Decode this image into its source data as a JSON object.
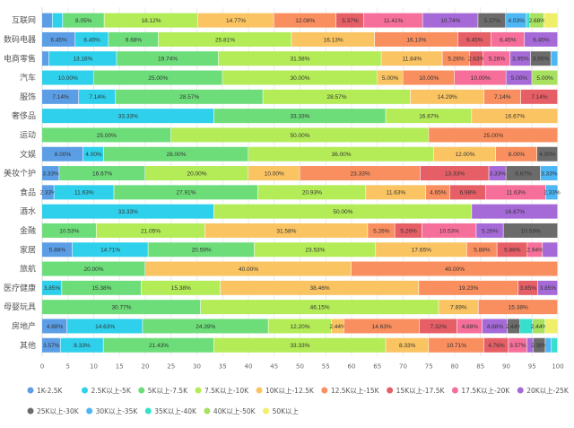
{
  "chart_data": {
    "type": "bar",
    "orientation": "horizontal",
    "stacked": true,
    "title": "",
    "xlabel": "",
    "ylabel": "",
    "xlim": [
      0,
      100
    ],
    "xticks": [
      0,
      5,
      10,
      15,
      20,
      25,
      30,
      35,
      40,
      45,
      50,
      55,
      60,
      65,
      70,
      75,
      80,
      85,
      90,
      95,
      100
    ],
    "grid": true,
    "legend_position": "bottom",
    "value_suffix": "%",
    "categories": [
      "互联网",
      "数码电器",
      "电商零售",
      "汽车",
      "服饰",
      "奢侈品",
      "运动",
      "文娱",
      "美妆个护",
      "食品",
      "酒水",
      "金融",
      "家居",
      "旅航",
      "医疗健康",
      "母婴玩具",
      "房地产",
      "其他"
    ],
    "series": [
      {
        "name": "1K-2.5K",
        "color": "#5b9ee6",
        "values": [
          2.01,
          6.45,
          1.32,
          0,
          7.14,
          0,
          0,
          8,
          3.33,
          2.33,
          0,
          0,
          5.88,
          0,
          0,
          0,
          4.88,
          3.57
        ]
      },
      {
        "name": "2.5K以上-5K",
        "color": "#2fd0ec",
        "values": [
          2.01,
          6.45,
          13.16,
          10,
          7.14,
          33.33,
          0,
          4,
          0,
          11.63,
          33.33,
          0,
          14.71,
          0,
          3.85,
          0,
          14.63,
          8.33
        ]
      },
      {
        "name": "5K以上-7.5K",
        "color": "#6ddd7a",
        "values": [
          8.05,
          9.68,
          19.74,
          25,
          28.57,
          33.33,
          25,
          28,
          16.67,
          27.91,
          0,
          10.53,
          20.59,
          20,
          15.38,
          30.77,
          24.39,
          21.43
        ]
      },
      {
        "name": "7.5K以上-10K",
        "color": "#b3ec57",
        "values": [
          18.12,
          25.81,
          31.58,
          30,
          28.57,
          16.67,
          50,
          36,
          20,
          20.93,
          50,
          21.05,
          23.53,
          0,
          15.38,
          46.15,
          12.2,
          33.33
        ]
      },
      {
        "name": "10K以上-12.5K",
        "color": "#fbc463",
        "values": [
          14.77,
          16.13,
          11.84,
          5,
          14.29,
          16.67,
          0,
          12,
          10,
          11.63,
          0,
          31.58,
          17.65,
          40,
          38.46,
          7.69,
          2.44,
          8.33
        ]
      },
      {
        "name": "12.5K以上-15K",
        "color": "#f98e5f",
        "values": [
          12.08,
          16.13,
          5.26,
          10,
          7.14,
          0,
          25,
          8,
          23.33,
          4.65,
          0,
          5.26,
          5.88,
          40,
          19.23,
          15.38,
          14.63,
          10.71
        ]
      },
      {
        "name": "15K以上-17.5K",
        "color": "#e65f66",
        "values": [
          5.37,
          6.45,
          2.63,
          0,
          7.14,
          0,
          0,
          0,
          13.33,
          6.98,
          0,
          5.26,
          5.88,
          0,
          3.85,
          0,
          7.32,
          4.76
        ]
      },
      {
        "name": "17.5K以上-20K",
        "color": "#f66f9a",
        "values": [
          11.41,
          6.45,
          5.26,
          10,
          0,
          0,
          0,
          0,
          0,
          11.63,
          0,
          10.53,
          2.94,
          0,
          0,
          0,
          4.88,
          3.57
        ]
      },
      {
        "name": "20K以上-25K",
        "color": "#a66ad8",
        "values": [
          10.74,
          6.45,
          3.95,
          5,
          0,
          0,
          0,
          0,
          3.33,
          0,
          16.67,
          5.26,
          2.94,
          0,
          3.85,
          0,
          4.88,
          1.19
        ]
      },
      {
        "name": "25K以上-30K",
        "color": "#6b6b6b",
        "values": [
          5.37,
          0,
          3.95,
          0,
          0,
          0,
          0,
          4,
          6.67,
          0,
          0,
          10.53,
          0,
          0,
          0,
          0,
          2.44,
          2.38
        ]
      },
      {
        "name": "30K以上-35K",
        "color": "#4db6f5",
        "values": [
          4.03,
          0,
          1.32,
          0,
          0,
          0,
          0,
          0,
          3.33,
          2.33,
          0,
          0,
          0,
          0,
          0,
          0,
          0,
          1.19
        ]
      },
      {
        "name": "35K以上-40K",
        "color": "#36e0cc",
        "values": [
          0.67,
          0,
          0,
          0,
          0,
          0,
          0,
          0,
          0,
          0,
          0,
          0,
          0,
          0,
          0,
          0,
          2.44,
          1.19
        ]
      },
      {
        "name": "40K以上-50K",
        "color": "#a8e060",
        "values": [
          2.68,
          0,
          0,
          5,
          0,
          0,
          0,
          0,
          0,
          0,
          0,
          0,
          0,
          0,
          0,
          0,
          2.44,
          0
        ]
      },
      {
        "name": "50K以上",
        "color": "#f0ef6a",
        "values": [
          2.68,
          0,
          0,
          0,
          0,
          0,
          0,
          0,
          0,
          0,
          0,
          0,
          0,
          0,
          0,
          0,
          2.44,
          0
        ]
      }
    ]
  }
}
